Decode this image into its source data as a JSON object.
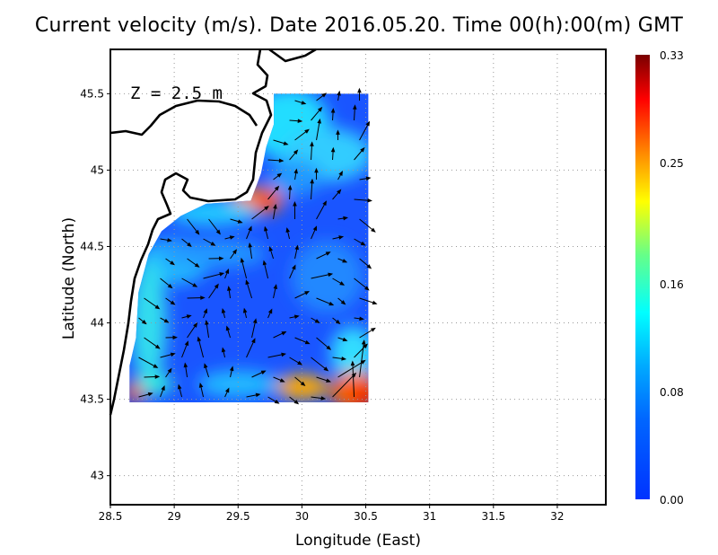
{
  "title": "Current velocity (m/s). Date 2016.05.20. Time 00(h):00(m) GMT",
  "depth_label": "Z = 2.5 m",
  "x_axis": {
    "label": "Longitude (East)",
    "ticks": [
      "28.5",
      "29",
      "29.5",
      "30",
      "30.5",
      "31",
      "31.5",
      "32"
    ],
    "range": [
      28.5,
      32.38
    ]
  },
  "y_axis": {
    "label": "Latitude (North)",
    "ticks": [
      "43",
      "43.5",
      "44",
      "44.5",
      "45",
      "45.5"
    ],
    "range": [
      42.81,
      45.79
    ]
  },
  "colorbar": {
    "ticks": [
      "0.00",
      "0.08",
      "0.16",
      "0.25",
      "0.33"
    ],
    "min": 0,
    "max": 0.33,
    "colors": [
      "#0033ff",
      "#0080ff",
      "#00ffff",
      "#80ff80",
      "#ffff00",
      "#ff8000",
      "#ff0000",
      "#800000"
    ]
  },
  "grid": "dotted",
  "background": "#ffffff"
}
